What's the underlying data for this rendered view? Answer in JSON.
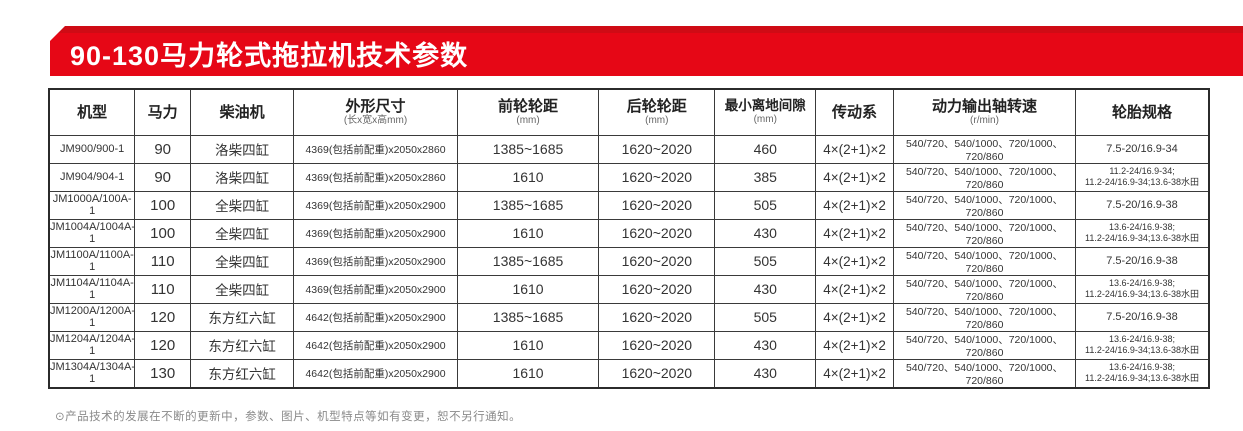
{
  "banner": {
    "title": "90-130马力轮式拖拉机技术参数",
    "bg_color": "#e60716",
    "text_color": "#ffffff"
  },
  "table": {
    "columns": [
      {
        "label": "机型",
        "sub": ""
      },
      {
        "label": "马力",
        "sub": ""
      },
      {
        "label": "柴油机",
        "sub": ""
      },
      {
        "label": "外形尺寸",
        "sub": "(长x宽x高mm)"
      },
      {
        "label": "前轮轮距",
        "sub": "(mm)"
      },
      {
        "label": "后轮轮距",
        "sub": "(mm)"
      },
      {
        "label": "最小离地间隙",
        "sub": "(mm)"
      },
      {
        "label": "传动系",
        "sub": ""
      },
      {
        "label": "动力输出轴转速",
        "sub": "(r/min)"
      },
      {
        "label": "轮胎规格",
        "sub": ""
      }
    ],
    "rows": [
      [
        "JM900/900-1",
        "90",
        "洛柴四缸",
        "4369(包括前配重)x2050x2860",
        "1385~1685",
        "1620~2020",
        "460",
        "4×(2+1)×2",
        "540/720、540/1000、720/1000、720/860",
        "7.5-20/16.9-34"
      ],
      [
        "JM904/904-1",
        "90",
        "洛柴四缸",
        "4369(包括前配重)x2050x2860",
        "1610",
        "1620~2020",
        "385",
        "4×(2+1)×2",
        "540/720、540/1000、720/1000、720/860",
        "11.2-24/16.9-34;\n11.2-24/16.9-34;13.6-38水田"
      ],
      [
        "JM1000A/100A-1",
        "100",
        "全柴四缸",
        "4369(包括前配重)x2050x2900",
        "1385~1685",
        "1620~2020",
        "505",
        "4×(2+1)×2",
        "540/720、540/1000、720/1000、720/860",
        "7.5-20/16.9-38"
      ],
      [
        "JM1004A/1004A-1",
        "100",
        "全柴四缸",
        "4369(包括前配重)x2050x2900",
        "1610",
        "1620~2020",
        "430",
        "4×(2+1)×2",
        "540/720、540/1000、720/1000、720/860",
        "13.6-24/16.9-38;\n11.2-24/16.9-34;13.6-38水田"
      ],
      [
        "JM1100A/1100A-1",
        "110",
        "全柴四缸",
        "4369(包括前配重)x2050x2900",
        "1385~1685",
        "1620~2020",
        "505",
        "4×(2+1)×2",
        "540/720、540/1000、720/1000、720/860",
        "7.5-20/16.9-38"
      ],
      [
        "JM1104A/1104A-1",
        "110",
        "全柴四缸",
        "4369(包括前配重)x2050x2900",
        "1610",
        "1620~2020",
        "430",
        "4×(2+1)×2",
        "540/720、540/1000、720/1000、720/860",
        "13.6-24/16.9-38;\n11.2-24/16.9-34;13.6-38水田"
      ],
      [
        "JM1200A/1200A-1",
        "120",
        "东方红六缸",
        "4642(包括前配重)x2050x2900",
        "1385~1685",
        "1620~2020",
        "505",
        "4×(2+1)×2",
        "540/720、540/1000、720/1000、720/860",
        "7.5-20/16.9-38"
      ],
      [
        "JM1204A/1204A-1",
        "120",
        "东方红六缸",
        "4642(包括前配重)x2050x2900",
        "1610",
        "1620~2020",
        "430",
        "4×(2+1)×2",
        "540/720、540/1000、720/1000、720/860",
        "13.6-24/16.9-38;\n11.2-24/16.9-34;13.6-38水田"
      ],
      [
        "JM1304A/1304A-1",
        "130",
        "东方红六缸",
        "4642(包括前配重)x2050x2900",
        "1610",
        "1620~2020",
        "430",
        "4×(2+1)×2",
        "540/720、540/1000、720/1000、720/860",
        "13.6-24/16.9-38;\n11.2-24/16.9-34;13.6-38水田"
      ]
    ]
  },
  "footer": {
    "note": "⊙产品技术的发展在不断的更新中，参数、图片、机型特点等如有变更，恕不另行通知。"
  }
}
